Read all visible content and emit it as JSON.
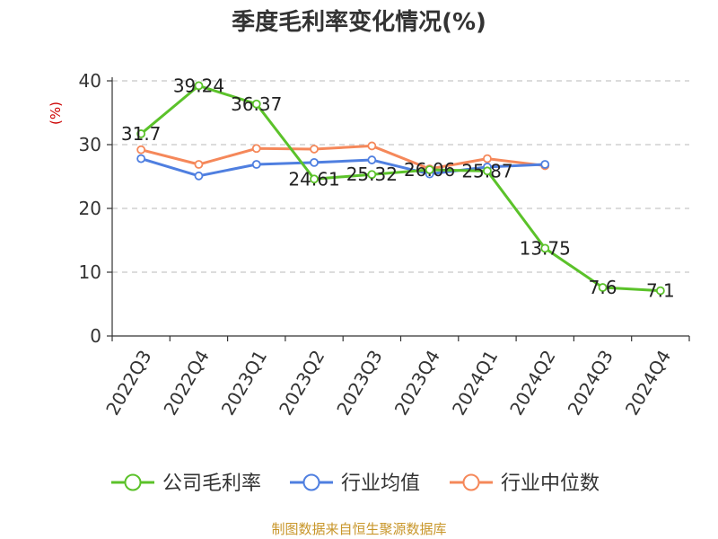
{
  "chart_data": {
    "type": "line",
    "title": "季度毛利率变化情况(%)",
    "ylabel": "(%)",
    "xlabel": "",
    "categories": [
      "2022Q3",
      "2022Q4",
      "2023Q1",
      "2023Q2",
      "2023Q3",
      "2023Q4",
      "2024Q1",
      "2024Q2",
      "2024Q3",
      "2024Q4"
    ],
    "ylim": [
      0,
      40
    ],
    "yticks": [
      0,
      10,
      20,
      30,
      40
    ],
    "grid": true,
    "legend_position": "bottom",
    "series": [
      {
        "name": "公司毛利率",
        "color": "#5bc22a",
        "values": [
          31.7,
          39.24,
          36.37,
          24.61,
          25.32,
          26.06,
          25.87,
          13.75,
          7.6,
          7.1
        ],
        "labels": [
          "31.7",
          "39.24",
          "36.37",
          "24.61",
          "25.32",
          "26.06",
          "25.87",
          "13.75",
          "7.6",
          "7.1"
        ]
      },
      {
        "name": "行业均值",
        "color": "#4f7fe0",
        "values": [
          27.8,
          25.1,
          26.9,
          27.2,
          27.6,
          25.4,
          26.5,
          26.9,
          null,
          null
        ]
      },
      {
        "name": "行业中位数",
        "color": "#f5885a",
        "values": [
          29.2,
          26.9,
          29.4,
          29.3,
          29.8,
          26.2,
          27.8,
          26.7,
          null,
          null
        ]
      }
    ]
  },
  "source_text": "制图数据来自恒生聚源数据库",
  "colors": {
    "axis": "#333333",
    "grid": "#c8c8c8",
    "ylabel": "#cc0000",
    "source": "#c8962a"
  }
}
